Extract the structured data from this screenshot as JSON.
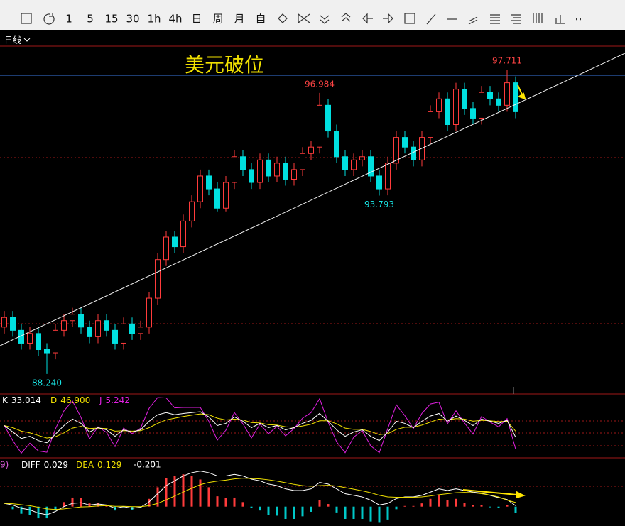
{
  "toolbar": {
    "periods": [
      "1",
      "5",
      "15",
      "30",
      "1h",
      "4h",
      "日",
      "周",
      "月",
      "自"
    ],
    "period_menu": "日线"
  },
  "chart_data": [
    {
      "type": "candlestick",
      "annotation": "美元破位",
      "ylim": [
        87.62,
        98.44
      ],
      "up_color": "#ff3b3b",
      "down_color": "#00e0e0",
      "high_label_color": "#ff4444",
      "low_label_color": "#19e3e3",
      "open": [
        89.7,
        90.0,
        89.6,
        89.2,
        89.5,
        89.0,
        88.9,
        89.6,
        89.9,
        90.1,
        89.7,
        89.4,
        89.9,
        89.6,
        89.2,
        89.8,
        89.5,
        89.7,
        90.6,
        91.8,
        92.5,
        92.2,
        93.0,
        93.6,
        94.4,
        94.0,
        93.4,
        94.2,
        95.0,
        94.6,
        94.2,
        94.9,
        94.4,
        94.8,
        94.3,
        94.6,
        95.1,
        95.3,
        96.6,
        95.8,
        95.0,
        94.6,
        94.9,
        95.0,
        94.4,
        94.0,
        94.8,
        95.6,
        95.3,
        94.9,
        95.6,
        96.4,
        96.8,
        96.0,
        97.1,
        96.5,
        96.2,
        97.0,
        96.8,
        96.6,
        97.3
      ],
      "high": [
        90.2,
        90.2,
        89.8,
        89.7,
        89.7,
        89.2,
        89.8,
        90.1,
        90.3,
        90.3,
        89.9,
        90.1,
        90.1,
        89.8,
        90.0,
        90.0,
        89.9,
        90.8,
        92.0,
        92.7,
        92.7,
        93.2,
        93.8,
        94.6,
        94.6,
        94.2,
        94.4,
        95.2,
        95.2,
        94.8,
        95.1,
        95.1,
        95.0,
        95.0,
        94.8,
        95.3,
        95.5,
        96.984,
        96.8,
        96.0,
        95.2,
        95.1,
        95.2,
        95.2,
        94.6,
        95.0,
        95.8,
        95.8,
        95.5,
        95.8,
        96.6,
        97.0,
        97.0,
        97.3,
        97.3,
        96.7,
        97.2,
        97.2,
        97.0,
        97.711,
        97.5
      ],
      "low": [
        89.5,
        89.4,
        89.0,
        89.0,
        88.8,
        88.24,
        88.7,
        89.4,
        89.7,
        89.5,
        89.2,
        89.2,
        89.4,
        89.0,
        89.0,
        89.3,
        89.3,
        89.5,
        90.4,
        91.6,
        92.0,
        92.0,
        92.8,
        93.4,
        93.8,
        93.3,
        93.3,
        94.0,
        94.4,
        94.0,
        94.0,
        94.2,
        94.2,
        94.1,
        94.1,
        94.4,
        94.9,
        95.1,
        95.6,
        94.8,
        94.4,
        94.4,
        94.7,
        94.2,
        93.793,
        93.8,
        94.6,
        95.1,
        94.7,
        94.7,
        95.4,
        96.2,
        95.8,
        95.8,
        96.3,
        96.0,
        96.0,
        96.6,
        96.4,
        96.4,
        96.2
      ],
      "close": [
        90.0,
        89.6,
        89.2,
        89.5,
        89.0,
        88.9,
        89.6,
        89.9,
        90.1,
        89.7,
        89.4,
        89.9,
        89.6,
        89.2,
        89.8,
        89.5,
        89.7,
        90.6,
        91.8,
        92.5,
        92.2,
        93.0,
        93.6,
        94.4,
        94.0,
        93.4,
        94.2,
        95.0,
        94.6,
        94.2,
        94.9,
        94.4,
        94.8,
        94.3,
        94.6,
        95.1,
        95.3,
        96.6,
        95.8,
        95.0,
        94.6,
        94.9,
        95.0,
        94.4,
        94.0,
        94.8,
        95.6,
        95.3,
        94.9,
        95.6,
        96.4,
        96.8,
        96.0,
        97.1,
        96.5,
        96.2,
        97.0,
        96.8,
        96.6,
        97.3,
        96.4
      ],
      "high_labels": [
        null,
        null,
        null,
        null,
        null,
        null,
        null,
        null,
        null,
        null,
        null,
        null,
        null,
        null,
        null,
        null,
        null,
        null,
        null,
        null,
        null,
        null,
        null,
        null,
        null,
        null,
        null,
        null,
        null,
        null,
        null,
        null,
        null,
        null,
        null,
        null,
        null,
        "96.984",
        null,
        null,
        null,
        null,
        null,
        null,
        null,
        null,
        null,
        null,
        null,
        null,
        null,
        null,
        null,
        null,
        null,
        null,
        null,
        null,
        null,
        "97.711",
        null
      ],
      "low_labels": [
        null,
        null,
        null,
        null,
        null,
        "88.240",
        null,
        null,
        null,
        null,
        null,
        null,
        null,
        null,
        null,
        null,
        null,
        null,
        null,
        null,
        null,
        null,
        null,
        null,
        null,
        null,
        null,
        null,
        null,
        null,
        null,
        null,
        null,
        null,
        null,
        null,
        null,
        null,
        null,
        null,
        null,
        null,
        null,
        null,
        "93.793",
        null,
        null,
        null,
        null,
        null,
        null,
        null,
        null,
        null,
        null,
        null,
        null,
        null,
        null,
        null,
        null
      ]
    },
    {
      "type": "line",
      "ylim": [
        -15,
        125
      ],
      "series": [
        {
          "name": "K",
          "readout": "33.014",
          "color": "#ffffff",
          "values": [
            60,
            45,
            30,
            35,
            25,
            20,
            40,
            60,
            75,
            65,
            45,
            55,
            50,
            35,
            50,
            45,
            50,
            70,
            85,
            90,
            85,
            88,
            90,
            92,
            80,
            60,
            65,
            80,
            70,
            55,
            65,
            55,
            60,
            50,
            55,
            65,
            72,
            88,
            70,
            50,
            35,
            45,
            50,
            35,
            25,
            45,
            70,
            65,
            55,
            70,
            82,
            88,
            70,
            82,
            72,
            60,
            75,
            70,
            65,
            72,
            33.014
          ]
        },
        {
          "name": "D",
          "readout": "46.900",
          "color": "#f0e000",
          "values": [
            60,
            55,
            47,
            43,
            37,
            31,
            34,
            43,
            54,
            58,
            53,
            54,
            53,
            47,
            48,
            47,
            48,
            55,
            65,
            73,
            77,
            81,
            84,
            87,
            85,
            77,
            73,
            75,
            73,
            67,
            66,
            62,
            61,
            57,
            56,
            59,
            63,
            71,
            71,
            64,
            54,
            51,
            51,
            46,
            39,
            41,
            51,
            56,
            56,
            61,
            68,
            75,
            73,
            76,
            75,
            70,
            72,
            71,
            69,
            70,
            46.9
          ]
        },
        {
          "name": "J",
          "readout": "5.242",
          "color": "#e020e0",
          "values": [
            60,
            25,
            -4,
            19,
            1,
            -2,
            52,
            94,
            117,
            79,
            29,
            57,
            44,
            11,
            54,
            41,
            54,
            100,
            125,
            124,
            101,
            102,
            102,
            102,
            70,
            26,
            49,
            90,
            64,
            31,
            63,
            41,
            58,
            36,
            53,
            77,
            90,
            122,
            68,
            22,
            -3,
            33,
            48,
            13,
            -3,
            53,
            108,
            83,
            53,
            88,
            110,
            114,
            64,
            94,
            66,
            40,
            81,
            68,
            57,
            76,
            5.242
          ]
        }
      ]
    },
    {
      "type": "macd",
      "label": "9)",
      "ylim": [
        -0.6,
        1.4
      ],
      "histogram": {
        "readout": "-0.201",
        "up_color": "#ff3b3b",
        "down_color": "#00c8c8",
        "values": [
          0,
          -0.08,
          -0.22,
          -0.26,
          -0.36,
          -0.36,
          -0.12,
          0.14,
          0.28,
          0.26,
          0.1,
          0.12,
          0.04,
          -0.12,
          -0.02,
          -0.1,
          -0.04,
          0.24,
          0.6,
          0.88,
          0.94,
          1.0,
          0.96,
          0.84,
          0.6,
          0.32,
          0.26,
          0.28,
          0.14,
          -0.04,
          -0.12,
          -0.26,
          -0.28,
          -0.38,
          -0.38,
          -0.3,
          -0.16,
          0.2,
          0.08,
          -0.18,
          -0.38,
          -0.38,
          -0.38,
          -0.46,
          -0.5,
          -0.4,
          -0.08,
          0.02,
          0.02,
          0.1,
          0.24,
          0.36,
          0.2,
          0.24,
          0.12,
          0.04,
          0.04,
          -0.02,
          -0.04,
          0.04,
          -0.201
        ]
      },
      "series": [
        {
          "name": "DIFF",
          "readout": "0.029",
          "color": "#ffffff",
          "values": [
            0.1,
            0.05,
            -0.05,
            -0.1,
            -0.2,
            -0.25,
            -0.15,
            0.0,
            0.1,
            0.12,
            0.05,
            0.08,
            0.05,
            -0.05,
            0.0,
            -0.05,
            -0.02,
            0.15,
            0.4,
            0.65,
            0.8,
            0.95,
            1.05,
            1.1,
            1.05,
            0.95,
            0.95,
            1.0,
            0.95,
            0.85,
            0.8,
            0.7,
            0.65,
            0.55,
            0.5,
            0.5,
            0.55,
            0.75,
            0.7,
            0.55,
            0.4,
            0.35,
            0.3,
            0.2,
            0.05,
            0.1,
            0.25,
            0.3,
            0.3,
            0.35,
            0.45,
            0.55,
            0.5,
            0.55,
            0.5,
            0.45,
            0.42,
            0.35,
            0.28,
            0.22,
            0.029
          ]
        },
        {
          "name": "DEA",
          "readout": "0.129",
          "color": "#f0e000",
          "values": [
            0.1,
            0.09,
            0.06,
            0.03,
            -0.02,
            -0.07,
            -0.09,
            -0.07,
            -0.04,
            -0.01,
            0.0,
            0.02,
            0.03,
            0.01,
            0.01,
            0.0,
            0.0,
            0.03,
            0.1,
            0.21,
            0.33,
            0.45,
            0.57,
            0.68,
            0.75,
            0.79,
            0.82,
            0.86,
            0.88,
            0.87,
            0.86,
            0.83,
            0.79,
            0.74,
            0.69,
            0.65,
            0.63,
            0.65,
            0.66,
            0.64,
            0.59,
            0.54,
            0.49,
            0.43,
            0.35,
            0.3,
            0.29,
            0.29,
            0.29,
            0.3,
            0.33,
            0.37,
            0.4,
            0.43,
            0.44,
            0.43,
            0.4,
            0.36,
            0.3,
            0.2,
            0.129
          ]
        }
      ]
    }
  ]
}
